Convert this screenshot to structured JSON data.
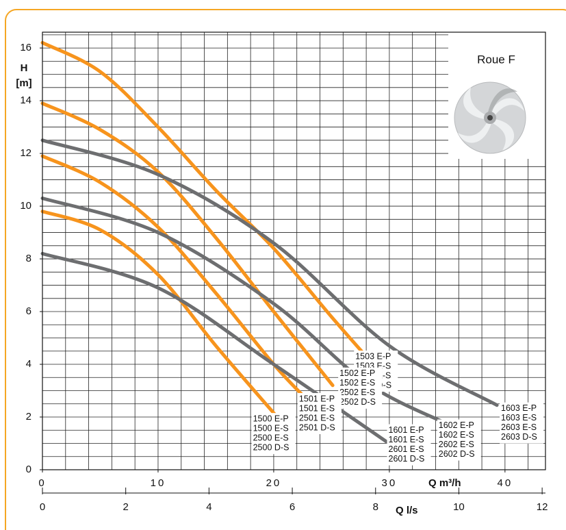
{
  "chart_data": {
    "type": "line",
    "y_label_1": "H",
    "y_label_2": "[m]",
    "x_label": "Q m³/h",
    "x2_label": "Q l/s",
    "inset_title": "Roue F",
    "xlim": [
      0,
      43.5
    ],
    "xticks": [
      0,
      10,
      20,
      30,
      40
    ],
    "xgrid_step": 2,
    "ylim": [
      0,
      16.6
    ],
    "yticks": [
      0,
      2,
      4,
      6,
      8,
      10,
      12,
      14,
      16
    ],
    "ygrid_step": 0.5,
    "x2lim": [
      0,
      12.08
    ],
    "x2ticks": [
      0,
      2,
      4,
      6,
      8,
      10,
      12
    ],
    "grid": true,
    "series": [
      {
        "labels": [
          "1503 E-P",
          "1503 E-S",
          "2503 E-S",
          "2503 D-S"
        ],
        "color": "#f7941d",
        "x": [
          0,
          5,
          10,
          15,
          20,
          25,
          28.6
        ],
        "y": [
          16.2,
          15.1,
          13.0,
          10.6,
          8.4,
          5.8,
          4.0
        ]
      },
      {
        "labels": [
          "1502 E-P",
          "1502 E-S",
          "2502 E-S",
          "2502 D-S"
        ],
        "color": "#f7941d",
        "x": [
          0,
          5,
          10,
          15,
          20,
          25.1
        ],
        "y": [
          13.9,
          12.9,
          11.3,
          8.8,
          6.0,
          3.2
        ]
      },
      {
        "labels": [
          "1501 E-P",
          "1501 E-S",
          "2501 E-S",
          "2501 D-S"
        ],
        "color": "#f7941d",
        "x": [
          0,
          5,
          10,
          15,
          20,
          22.9
        ],
        "y": [
          11.9,
          10.9,
          9.2,
          6.7,
          4.0,
          2.65
        ]
      },
      {
        "labels": [
          "1500 E-P",
          "1500 E-S",
          "2500 E-S",
          "2500 D-S"
        ],
        "color": "#f7941d",
        "x": [
          0,
          5,
          10,
          15,
          20.1
        ],
        "y": [
          9.8,
          9.1,
          7.4,
          4.7,
          2.1
        ]
      },
      {
        "labels": [
          "1603 E-P",
          "1603 E-S",
          "2603 E-S",
          "2603 D-S"
        ],
        "color": "#6d6e70",
        "x": [
          0,
          10,
          20,
          30,
          39.3
        ],
        "y": [
          12.5,
          11.2,
          8.6,
          4.7,
          2.45
        ]
      },
      {
        "labels": [
          "1602 E-P",
          "1602 E-S",
          "2602 E-S",
          "2602 D-S"
        ],
        "color": "#6d6e70",
        "x": [
          0,
          10,
          20,
          28,
          35.2
        ],
        "y": [
          10.3,
          9.0,
          6.3,
          3.3,
          1.7
        ]
      },
      {
        "labels": [
          "1601 E-P",
          "1601 E-S",
          "2601 E-S",
          "2601 D-S"
        ],
        "color": "#6d6e70",
        "x": [
          0,
          10,
          20,
          29.8
        ],
        "y": [
          8.2,
          6.9,
          4.0,
          1.05
        ]
      }
    ]
  }
}
